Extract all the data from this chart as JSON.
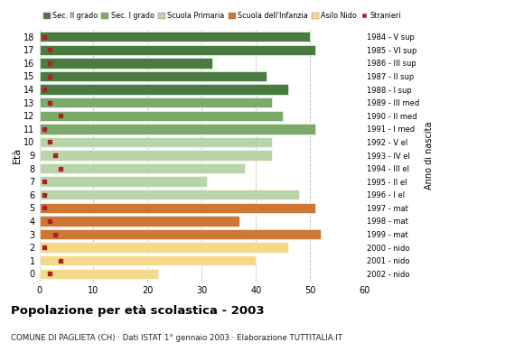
{
  "ages": [
    18,
    17,
    16,
    15,
    14,
    13,
    12,
    11,
    10,
    9,
    8,
    7,
    6,
    5,
    4,
    3,
    2,
    1,
    0
  ],
  "years": [
    "1984 - V sup",
    "1985 - VI sup",
    "1986 - III sup",
    "1987 - II sup",
    "1988 - I sup",
    "1989 - III med",
    "1990 - II med",
    "1991 - I med",
    "1992 - V el",
    "1993 - IV el",
    "1994 - III el",
    "1995 - II el",
    "1996 - I el",
    "1997 - mat",
    "1998 - mat",
    "1999 - mat",
    "2000 - nido",
    "2001 - nido",
    "2002 - nido"
  ],
  "bar_values": [
    50,
    51,
    32,
    42,
    46,
    43,
    45,
    51,
    43,
    43,
    38,
    31,
    48,
    51,
    37,
    52,
    46,
    40,
    22
  ],
  "stranieri": [
    1,
    2,
    2,
    2,
    1,
    2,
    4,
    1,
    2,
    3,
    4,
    1,
    1,
    1,
    2,
    3,
    1,
    4,
    2
  ],
  "bar_colors": [
    "#4a7c42",
    "#4a7c42",
    "#4a7c42",
    "#4a7c42",
    "#4a7c42",
    "#7aab6a",
    "#7aab6a",
    "#7aab6a",
    "#b8d4a8",
    "#b8d4a8",
    "#b8d4a8",
    "#b8d4a8",
    "#b8d4a8",
    "#cc7733",
    "#cc7733",
    "#cc7733",
    "#f5d98a",
    "#f5d98a",
    "#f5d98a"
  ],
  "legend_labels": [
    "Sec. II grado",
    "Sec. I grado",
    "Scuola Primaria",
    "Scuola dell'Infanzia",
    "Asilo Nido",
    "Stranieri"
  ],
  "legend_colors": [
    "#4a7c42",
    "#7aab6a",
    "#b8d4a8",
    "#cc7733",
    "#f5d98a",
    "#aa2222"
  ],
  "stranieri_color": "#aa2222",
  "title": "Popolazione per età scolastica - 2003",
  "subtitle": "COMUNE DI PAGLIETA (CH) · Dati ISTAT 1° gennaio 2003 · Elaborazione TUTTITALIA.IT",
  "ylabel": "Età",
  "ylabel_right": "Anno di nascita",
  "xlim": [
    0,
    60
  ],
  "xticks": [
    0,
    10,
    20,
    30,
    40,
    50,
    60
  ],
  "grid_color": "#bbbbbb",
  "bg_color": "#ffffff"
}
